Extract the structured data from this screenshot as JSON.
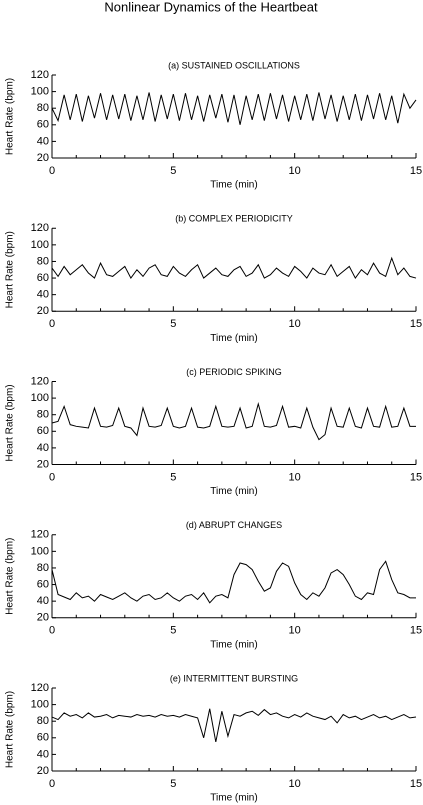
{
  "title": "Nonlinear Dynamics of the Heartbeat",
  "chart_data": [
    {
      "type": "line",
      "title": "(a) SUSTAINED OSCILLATIONS",
      "x_label": "Time (min)",
      "y_label": "Heart Rate (bpm)",
      "color": "#000000",
      "x": [
        0,
        0.25,
        0.5,
        0.75,
        1,
        1.25,
        1.5,
        1.75,
        2,
        2.25,
        2.5,
        2.75,
        3,
        3.25,
        3.5,
        3.75,
        4,
        4.25,
        4.5,
        4.75,
        5,
        5.25,
        5.5,
        5.75,
        6,
        6.25,
        6.5,
        6.75,
        7,
        7.25,
        7.5,
        7.75,
        8,
        8.25,
        8.5,
        8.75,
        9,
        9.25,
        9.5,
        9.75,
        10,
        10.25,
        10.5,
        10.75,
        11,
        11.25,
        11.5,
        11.75,
        12,
        12.25,
        12.5,
        12.75,
        13,
        13.25,
        13.5,
        13.75,
        14,
        14.25,
        14.5,
        14.75,
        15
      ],
      "values": [
        80,
        65,
        96,
        66,
        97,
        64,
        95,
        68,
        98,
        66,
        96,
        67,
        97,
        65,
        95,
        66,
        99,
        64,
        96,
        67,
        97,
        65,
        98,
        66,
        95,
        64,
        96,
        68,
        97,
        63,
        96,
        60,
        95,
        66,
        97,
        65,
        98,
        67,
        96,
        64,
        95,
        66,
        97,
        65,
        99,
        67,
        96,
        64,
        95,
        66,
        97,
        65,
        96,
        67,
        98,
        66,
        95,
        62,
        97,
        80,
        90
      ],
      "xlim": [
        0,
        15
      ],
      "ylim": [
        20,
        120
      ],
      "xticks": [
        0,
        5,
        10,
        15
      ],
      "xminorticks": [
        1,
        2,
        3,
        4,
        6,
        7,
        8,
        9,
        11,
        12,
        13,
        14
      ],
      "yticks": [
        20,
        40,
        60,
        80,
        100,
        120
      ]
    },
    {
      "type": "line",
      "title": "(b) COMPLEX PERIODICITY",
      "x_label": "Time (min)",
      "y_label": "Heart Rate (bpm)",
      "color": "#000000",
      "x": [
        0,
        0.25,
        0.5,
        0.75,
        1,
        1.25,
        1.5,
        1.75,
        2,
        2.25,
        2.5,
        2.75,
        3,
        3.25,
        3.5,
        3.75,
        4,
        4.25,
        4.5,
        4.75,
        5,
        5.25,
        5.5,
        5.75,
        6,
        6.25,
        6.5,
        6.75,
        7,
        7.25,
        7.5,
        7.75,
        8,
        8.25,
        8.5,
        8.75,
        9,
        9.25,
        9.5,
        9.75,
        10,
        10.25,
        10.5,
        10.75,
        11,
        11.25,
        11.5,
        11.75,
        12,
        12.25,
        12.5,
        12.75,
        13,
        13.25,
        13.5,
        13.75,
        14,
        14.25,
        14.5,
        14.75,
        15
      ],
      "values": [
        72,
        62,
        74,
        64,
        70,
        76,
        66,
        60,
        78,
        64,
        62,
        68,
        74,
        60,
        70,
        62,
        72,
        76,
        64,
        62,
        74,
        66,
        62,
        70,
        76,
        60,
        66,
        72,
        64,
        62,
        70,
        74,
        62,
        66,
        76,
        60,
        64,
        72,
        66,
        62,
        74,
        68,
        60,
        72,
        66,
        64,
        76,
        62,
        68,
        74,
        60,
        70,
        64,
        78,
        66,
        62,
        84,
        64,
        72,
        62,
        60
      ],
      "xlim": [
        0,
        15
      ],
      "ylim": [
        20,
        120
      ],
      "xticks": [
        0,
        5,
        10,
        15
      ],
      "xminorticks": [
        1,
        2,
        3,
        4,
        6,
        7,
        8,
        9,
        11,
        12,
        13,
        14
      ],
      "yticks": [
        20,
        40,
        60,
        80,
        100,
        120
      ]
    },
    {
      "type": "line",
      "title": "(c) PERIODIC SPIKING",
      "x_label": "Time (min)",
      "y_label": "Heart Rate (bpm)",
      "color": "#000000",
      "x": [
        0,
        0.25,
        0.5,
        0.75,
        1,
        1.25,
        1.5,
        1.75,
        2,
        2.25,
        2.5,
        2.75,
        3,
        3.25,
        3.5,
        3.75,
        4,
        4.25,
        4.5,
        4.75,
        5,
        5.25,
        5.5,
        5.75,
        6,
        6.25,
        6.5,
        6.75,
        7,
        7.25,
        7.5,
        7.75,
        8,
        8.25,
        8.5,
        8.75,
        9,
        9.25,
        9.5,
        9.75,
        10,
        10.25,
        10.5,
        10.75,
        11,
        11.25,
        11.5,
        11.75,
        12,
        12.25,
        12.5,
        12.75,
        13,
        13.25,
        13.5,
        13.75,
        14,
        14.25,
        14.5,
        14.75,
        15
      ],
      "values": [
        70,
        72,
        90,
        68,
        66,
        65,
        64,
        88,
        66,
        65,
        67,
        88,
        66,
        64,
        55,
        88,
        66,
        65,
        67,
        88,
        66,
        64,
        66,
        88,
        65,
        64,
        66,
        90,
        66,
        65,
        66,
        88,
        64,
        66,
        93,
        66,
        65,
        67,
        90,
        65,
        66,
        64,
        88,
        65,
        50,
        56,
        88,
        66,
        65,
        88,
        66,
        64,
        88,
        66,
        65,
        90,
        65,
        66,
        88,
        66,
        66
      ],
      "xlim": [
        0,
        15
      ],
      "ylim": [
        20,
        120
      ],
      "xticks": [
        0,
        5,
        10,
        15
      ],
      "xminorticks": [
        1,
        2,
        3,
        4,
        6,
        7,
        8,
        9,
        11,
        12,
        13,
        14
      ],
      "yticks": [
        20,
        40,
        60,
        80,
        100,
        120
      ]
    },
    {
      "type": "line",
      "title": "(d) ABRUPT CHANGES",
      "x_label": "Time (min)",
      "y_label": "Heart Rate (bpm)",
      "color": "#000000",
      "x": [
        0,
        0.25,
        0.5,
        0.75,
        1,
        1.25,
        1.5,
        1.75,
        2,
        2.25,
        2.5,
        2.75,
        3,
        3.25,
        3.5,
        3.75,
        4,
        4.25,
        4.5,
        4.75,
        5,
        5.25,
        5.5,
        5.75,
        6,
        6.25,
        6.5,
        6.75,
        7,
        7.25,
        7.5,
        7.75,
        8,
        8.25,
        8.5,
        8.75,
        9,
        9.25,
        9.5,
        9.75,
        10,
        10.25,
        10.5,
        10.75,
        11,
        11.25,
        11.5,
        11.75,
        12,
        12.25,
        12.5,
        12.75,
        13,
        13.25,
        13.5,
        13.75,
        14,
        14.25,
        14.5,
        14.75,
        15
      ],
      "values": [
        78,
        48,
        45,
        42,
        50,
        44,
        46,
        40,
        48,
        45,
        42,
        46,
        50,
        44,
        40,
        46,
        48,
        42,
        44,
        50,
        44,
        40,
        46,
        48,
        42,
        50,
        38,
        46,
        48,
        44,
        72,
        86,
        84,
        78,
        64,
        52,
        56,
        76,
        86,
        82,
        62,
        48,
        42,
        50,
        46,
        56,
        74,
        78,
        72,
        60,
        46,
        42,
        50,
        48,
        78,
        88,
        66,
        50,
        48,
        44,
        44
      ],
      "xlim": [
        0,
        15
      ],
      "ylim": [
        20,
        120
      ],
      "xticks": [
        0,
        5,
        10,
        15
      ],
      "xminorticks": [
        1,
        2,
        3,
        4,
        6,
        7,
        8,
        9,
        11,
        12,
        13,
        14
      ],
      "yticks": [
        20,
        40,
        60,
        80,
        100,
        120
      ]
    },
    {
      "type": "line",
      "title": "(e) INTERMITTENT BURSTING",
      "x_label": "Time (min)",
      "y_label": "Heart Rate (bpm)",
      "color": "#000000",
      "x": [
        0,
        0.25,
        0.5,
        0.75,
        1,
        1.25,
        1.5,
        1.75,
        2,
        2.25,
        2.5,
        2.75,
        3,
        3.25,
        3.5,
        3.75,
        4,
        4.25,
        4.5,
        4.75,
        5,
        5.25,
        5.5,
        5.75,
        6,
        6.25,
        6.5,
        6.75,
        7,
        7.25,
        7.5,
        7.75,
        8,
        8.25,
        8.5,
        8.75,
        9,
        9.25,
        9.5,
        9.75,
        10,
        10.25,
        10.5,
        10.75,
        11,
        11.25,
        11.5,
        11.75,
        12,
        12.25,
        12.5,
        12.75,
        13,
        13.25,
        13.5,
        13.75,
        14,
        14.25,
        14.5,
        14.75,
        15
      ],
      "values": [
        85,
        82,
        90,
        86,
        88,
        84,
        90,
        85,
        86,
        88,
        84,
        87,
        86,
        85,
        88,
        86,
        87,
        85,
        88,
        86,
        87,
        85,
        88,
        86,
        84,
        60,
        95,
        55,
        92,
        62,
        88,
        86,
        90,
        92,
        87,
        94,
        88,
        90,
        86,
        84,
        88,
        85,
        90,
        86,
        84,
        82,
        86,
        78,
        88,
        84,
        86,
        82,
        85,
        88,
        84,
        86,
        82,
        85,
        88,
        84,
        85
      ],
      "xlim": [
        0,
        15
      ],
      "ylim": [
        20,
        120
      ],
      "xticks": [
        0,
        5,
        10,
        15
      ],
      "xminorticks": [
        1,
        2,
        3,
        4,
        6,
        7,
        8,
        9,
        11,
        12,
        13,
        14
      ],
      "yticks": [
        20,
        40,
        60,
        80,
        100,
        120
      ]
    }
  ]
}
